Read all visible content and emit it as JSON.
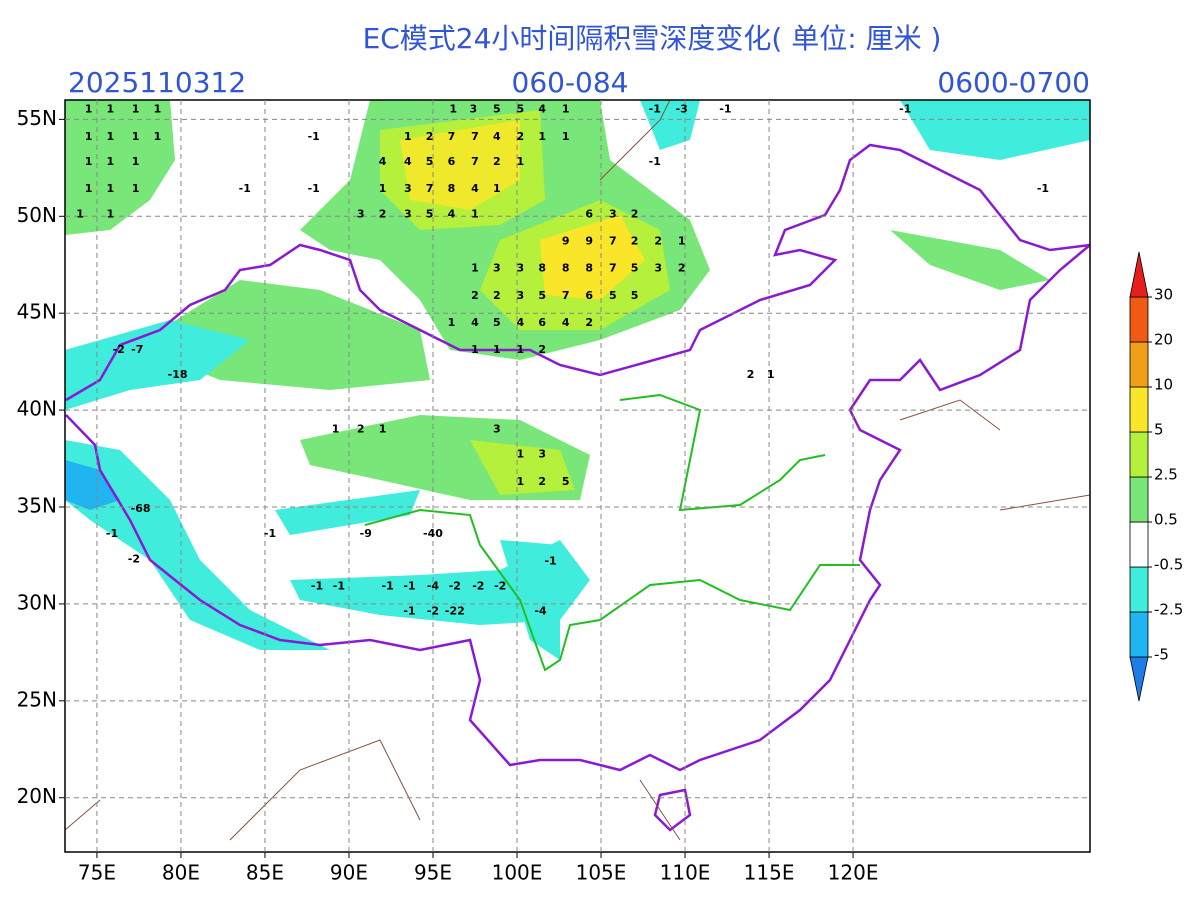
{
  "header": {
    "title": "EC模式24小时间隔积雪深度变化( 单位: 厘米 )",
    "init": "2025110312",
    "range": "060-084",
    "valid": "0600-0700"
  },
  "map": {
    "xlim": [
      73.1,
      134.1
    ],
    "ylim": [
      17.2,
      56
    ],
    "grid": true,
    "xticks": [
      {
        "value": 75,
        "label": "75E"
      },
      {
        "value": 80,
        "label": "80E"
      },
      {
        "value": 85,
        "label": "85E"
      },
      {
        "value": 90,
        "label": "90E"
      },
      {
        "value": 95,
        "label": "95E"
      },
      {
        "value": 100,
        "label": "100E"
      },
      {
        "value": 105,
        "label": "105E"
      },
      {
        "value": 110,
        "label": "110E"
      },
      {
        "value": 115,
        "label": "115E"
      },
      {
        "value": 120,
        "label": "120E"
      }
    ],
    "yticks": [
      {
        "value": 20,
        "label": "20N"
      },
      {
        "value": 25,
        "label": "25N"
      },
      {
        "value": 30,
        "label": "30N"
      },
      {
        "value": 35,
        "label": "35N"
      },
      {
        "value": 40,
        "label": "40N"
      },
      {
        "value": 45,
        "label": "45N"
      },
      {
        "value": 50,
        "label": "50N"
      },
      {
        "value": 55,
        "label": "55N"
      }
    ],
    "labels": [
      {
        "lon": 74.5,
        "lat": 55.5,
        "value": 1
      },
      {
        "lon": 75.8,
        "lat": 55.5,
        "value": 1
      },
      {
        "lon": 77.3,
        "lat": 55.5,
        "value": 1
      },
      {
        "lon": 78.6,
        "lat": 55.5,
        "value": 1
      },
      {
        "lon": 74.5,
        "lat": 54.1,
        "value": 1
      },
      {
        "lon": 75.8,
        "lat": 54.1,
        "value": 1
      },
      {
        "lon": 77.3,
        "lat": 54.1,
        "value": 1
      },
      {
        "lon": 78.6,
        "lat": 54.1,
        "value": 1
      },
      {
        "lon": 74.5,
        "lat": 52.8,
        "value": 1
      },
      {
        "lon": 75.8,
        "lat": 52.8,
        "value": 1
      },
      {
        "lon": 77.3,
        "lat": 52.8,
        "value": 1
      },
      {
        "lon": 74.5,
        "lat": 51.4,
        "value": 1
      },
      {
        "lon": 75.8,
        "lat": 51.4,
        "value": 1
      },
      {
        "lon": 77.3,
        "lat": 51.4,
        "value": 1
      },
      {
        "lon": 74.0,
        "lat": 50.1,
        "value": 1
      },
      {
        "lon": 75.8,
        "lat": 50.1,
        "value": 1
      },
      {
        "lon": 96.2,
        "lat": 55.5,
        "value": 1
      },
      {
        "lon": 97.4,
        "lat": 55.5,
        "value": 3
      },
      {
        "lon": 98.8,
        "lat": 55.5,
        "value": 5
      },
      {
        "lon": 100.2,
        "lat": 55.5,
        "value": 5
      },
      {
        "lon": 101.5,
        "lat": 55.5,
        "value": 4
      },
      {
        "lon": 102.9,
        "lat": 55.5,
        "value": 1
      },
      {
        "lon": 93.5,
        "lat": 54.1,
        "value": 1
      },
      {
        "lon": 94.8,
        "lat": 54.1,
        "value": 2
      },
      {
        "lon": 96.1,
        "lat": 54.1,
        "value": 7
      },
      {
        "lon": 97.5,
        "lat": 54.1,
        "value": 7
      },
      {
        "lon": 98.8,
        "lat": 54.1,
        "value": 4
      },
      {
        "lon": 100.2,
        "lat": 54.1,
        "value": 2
      },
      {
        "lon": 101.5,
        "lat": 54.1,
        "value": 1
      },
      {
        "lon": 102.9,
        "lat": 54.1,
        "value": 1
      },
      {
        "lon": 92.0,
        "lat": 52.8,
        "value": 4
      },
      {
        "lon": 93.5,
        "lat": 52.8,
        "value": 4
      },
      {
        "lon": 94.8,
        "lat": 52.8,
        "value": 5
      },
      {
        "lon": 96.1,
        "lat": 52.8,
        "value": 6
      },
      {
        "lon": 97.5,
        "lat": 52.8,
        "value": 7
      },
      {
        "lon": 98.8,
        "lat": 52.8,
        "value": 2
      },
      {
        "lon": 100.2,
        "lat": 52.8,
        "value": 1
      },
      {
        "lon": 92.0,
        "lat": 51.4,
        "value": 1
      },
      {
        "lon": 93.5,
        "lat": 51.4,
        "value": 3
      },
      {
        "lon": 94.8,
        "lat": 51.4,
        "value": 7
      },
      {
        "lon": 96.1,
        "lat": 51.4,
        "value": 8
      },
      {
        "lon": 97.5,
        "lat": 51.4,
        "value": 4
      },
      {
        "lon": 98.8,
        "lat": 51.4,
        "value": 1
      },
      {
        "lon": 90.7,
        "lat": 50.1,
        "value": 3
      },
      {
        "lon": 92.0,
        "lat": 50.1,
        "value": 2
      },
      {
        "lon": 93.5,
        "lat": 50.1,
        "value": 3
      },
      {
        "lon": 94.8,
        "lat": 50.1,
        "value": 5
      },
      {
        "lon": 96.1,
        "lat": 50.1,
        "value": 4
      },
      {
        "lon": 97.5,
        "lat": 50.1,
        "value": 1
      },
      {
        "lon": 104.3,
        "lat": 50.1,
        "value": 6
      },
      {
        "lon": 105.7,
        "lat": 50.1,
        "value": 3
      },
      {
        "lon": 107.0,
        "lat": 50.1,
        "value": 2
      },
      {
        "lon": 102.9,
        "lat": 48.7,
        "value": 9
      },
      {
        "lon": 104.3,
        "lat": 48.7,
        "value": 9
      },
      {
        "lon": 105.7,
        "lat": 48.7,
        "value": 7
      },
      {
        "lon": 107.0,
        "lat": 48.7,
        "value": 2
      },
      {
        "lon": 108.4,
        "lat": 48.7,
        "value": 2
      },
      {
        "lon": 109.8,
        "lat": 48.7,
        "value": 1
      },
      {
        "lon": 97.5,
        "lat": 47.3,
        "value": 1
      },
      {
        "lon": 98.8,
        "lat": 47.3,
        "value": 3
      },
      {
        "lon": 100.2,
        "lat": 47.3,
        "value": 3
      },
      {
        "lon": 101.5,
        "lat": 47.3,
        "value": 8
      },
      {
        "lon": 102.9,
        "lat": 47.3,
        "value": 8
      },
      {
        "lon": 104.3,
        "lat": 47.3,
        "value": 8
      },
      {
        "lon": 105.7,
        "lat": 47.3,
        "value": 7
      },
      {
        "lon": 107.0,
        "lat": 47.3,
        "value": 5
      },
      {
        "lon": 108.4,
        "lat": 47.3,
        "value": 3
      },
      {
        "lon": 109.8,
        "lat": 47.3,
        "value": 2
      },
      {
        "lon": 97.5,
        "lat": 45.9,
        "value": 2
      },
      {
        "lon": 98.8,
        "lat": 45.9,
        "value": 2
      },
      {
        "lon": 100.2,
        "lat": 45.9,
        "value": 3
      },
      {
        "lon": 101.5,
        "lat": 45.9,
        "value": 5
      },
      {
        "lon": 102.9,
        "lat": 45.9,
        "value": 7
      },
      {
        "lon": 104.3,
        "lat": 45.9,
        "value": 6
      },
      {
        "lon": 105.7,
        "lat": 45.9,
        "value": 5
      },
      {
        "lon": 107.0,
        "lat": 45.9,
        "value": 5
      },
      {
        "lon": 96.1,
        "lat": 44.5,
        "value": 1
      },
      {
        "lon": 97.5,
        "lat": 44.5,
        "value": 4
      },
      {
        "lon": 98.8,
        "lat": 44.5,
        "value": 5
      },
      {
        "lon": 100.2,
        "lat": 44.5,
        "value": 4
      },
      {
        "lon": 101.5,
        "lat": 44.5,
        "value": 6
      },
      {
        "lon": 102.9,
        "lat": 44.5,
        "value": 4
      },
      {
        "lon": 104.3,
        "lat": 44.5,
        "value": 2
      },
      {
        "lon": 97.5,
        "lat": 43.1,
        "value": 1
      },
      {
        "lon": 98.8,
        "lat": 43.1,
        "value": 1
      },
      {
        "lon": 100.2,
        "lat": 43.1,
        "value": 1
      },
      {
        "lon": 101.5,
        "lat": 43.1,
        "value": 2
      },
      {
        "lon": 108.2,
        "lat": 55.5,
        "value": -1
      },
      {
        "lon": 109.8,
        "lat": 55.5,
        "value": -3
      },
      {
        "lon": 112.4,
        "lat": 55.5,
        "value": -1
      },
      {
        "lon": 123.1,
        "lat": 55.5,
        "value": -1
      },
      {
        "lon": 87.9,
        "lat": 54.1,
        "value": -1
      },
      {
        "lon": 108.2,
        "lat": 52.8,
        "value": -1
      },
      {
        "lon": 83.8,
        "lat": 51.4,
        "value": -1
      },
      {
        "lon": 87.9,
        "lat": 51.4,
        "value": -1
      },
      {
        "lon": 131.3,
        "lat": 51.4,
        "value": -1
      },
      {
        "lon": 89.2,
        "lat": 39.0,
        "value": 1
      },
      {
        "lon": 90.7,
        "lat": 39.0,
        "value": 2
      },
      {
        "lon": 92.0,
        "lat": 39.0,
        "value": 1
      },
      {
        "lon": 98.8,
        "lat": 39.0,
        "value": 3
      },
      {
        "lon": 100.2,
        "lat": 37.7,
        "value": 1
      },
      {
        "lon": 101.5,
        "lat": 37.7,
        "value": 3
      },
      {
        "lon": 100.2,
        "lat": 36.3,
        "value": 1
      },
      {
        "lon": 101.5,
        "lat": 36.3,
        "value": 2
      },
      {
        "lon": 102.9,
        "lat": 36.3,
        "value": 5
      },
      {
        "lon": 95.0,
        "lat": 33.6,
        "value": -40
      },
      {
        "lon": 91.0,
        "lat": 33.6,
        "value": -9
      },
      {
        "lon": 85.3,
        "lat": 33.6,
        "value": -1
      },
      {
        "lon": 75.9,
        "lat": 33.6,
        "value": -1
      },
      {
        "lon": 102.0,
        "lat": 32.2,
        "value": -1
      },
      {
        "lon": 77.2,
        "lat": 32.3,
        "value": -2
      },
      {
        "lon": 88.1,
        "lat": 30.9,
        "value": -1
      },
      {
        "lon": 89.4,
        "lat": 30.9,
        "value": -1
      },
      {
        "lon": 92.3,
        "lat": 30.9,
        "value": -1
      },
      {
        "lon": 93.6,
        "lat": 30.9,
        "value": -1
      },
      {
        "lon": 95.0,
        "lat": 30.9,
        "value": -4
      },
      {
        "lon": 96.3,
        "lat": 30.9,
        "value": -2
      },
      {
        "lon": 97.7,
        "lat": 30.9,
        "value": -2
      },
      {
        "lon": 99.0,
        "lat": 30.9,
        "value": -2
      },
      {
        "lon": 93.6,
        "lat": 29.6,
        "value": -1
      },
      {
        "lon": 95.0,
        "lat": 29.6,
        "value": -2
      },
      {
        "lon": 96.3,
        "lat": 29.6,
        "value": -22
      },
      {
        "lon": 101.4,
        "lat": 29.6,
        "value": -4
      },
      {
        "lon": 76.3,
        "lat": 43.1,
        "value": -2
      },
      {
        "lon": 77.4,
        "lat": 43.1,
        "value": -7
      },
      {
        "lon": 79.8,
        "lat": 41.8,
        "value": -18
      },
      {
        "lon": 77.6,
        "lat": 34.9,
        "value": -68
      },
      {
        "lon": 113.9,
        "lat": 41.8,
        "value": 2
      },
      {
        "lon": 115.1,
        "lat": 41.8,
        "value": 1
      }
    ]
  },
  "colorbar": {
    "levels": [
      -5,
      -2.5,
      -0.5,
      0.5,
      2.5,
      5,
      10,
      20,
      30
    ],
    "colors": [
      "#1e7ee8",
      "#20b4f0",
      "#40ecdc",
      "#ffffff",
      "#78e678",
      "#b4f03c",
      "#fae628",
      "#f0a018",
      "#f05a14",
      "#e61e1e"
    ]
  }
}
